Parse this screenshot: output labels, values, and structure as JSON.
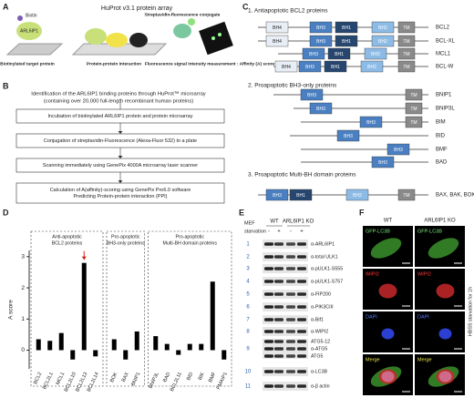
{
  "panel_labels": [
    "A",
    "B",
    "C",
    "D",
    "E",
    "F"
  ],
  "panel_a": {
    "title": "HuProt v3.1 protein array",
    "biotin": "Biotin",
    "protein": "ARL6IP1",
    "captions": [
      "Biotinylated target protein",
      "Protein-protein interaction",
      "Streptavidin-fluorescence conjugate",
      "Fluorescence signal intensity measurement : Affinity (A) score"
    ]
  },
  "panel_b": {
    "header": [
      "Identification of the ARL6IP1 binding proteins through HuProt™ microarray",
      "(containing over 20,000 full-length recombinant human proteins)"
    ],
    "steps": [
      [
        "Incubation of biotinylated ARL6IP1 protein and protein microarray"
      ],
      [
        "Conjugation of streptavidin-Fluorescence (Alexa-Fluor 532) to a plate"
      ],
      [
        "Scanning immediately using GenePix 4000A microarray laser scanner"
      ],
      [
        "Calculation of A(affinity)-scoring using GenePix Pro6.0 software",
        "Predicting Protein-protein interaction (PPI)"
      ]
    ]
  },
  "panel_c": {
    "sections": [
      {
        "title": "1. Antiapoptotic BCL2 proteins",
        "rows": [
          {
            "label": "BCL2",
            "domains": [
              "BH4",
              "BH3",
              "BH1",
              "BH2",
              "TM"
            ]
          },
          {
            "label": "BCL-XL",
            "domains": [
              "BH4",
              "BH3",
              "BH1",
              "BH2",
              "TM"
            ]
          },
          {
            "label": "MCL1",
            "domains": [
              "BH3",
              "BH1",
              "BH2",
              "TM"
            ]
          },
          {
            "label": "BCL-W",
            "domains": [
              "BH4",
              "BH3",
              "BH1",
              "BH2",
              "TM"
            ]
          }
        ]
      },
      {
        "title": "2. Proapoptotic BH3-only proteins",
        "rows": [
          {
            "label": "BNIP1",
            "domains": [
              "BH3",
              "TM"
            ]
          },
          {
            "label": "BNIP3L",
            "domains": [
              "BH3",
              "TM"
            ]
          },
          {
            "label": "BIM",
            "domains": [
              "BH3",
              "TM"
            ]
          },
          {
            "label": "BID",
            "domains": [
              "BH3"
            ]
          },
          {
            "label": "BMF",
            "domains": [
              "BH3"
            ]
          },
          {
            "label": "BAD",
            "domains": [
              "BH3"
            ]
          }
        ]
      },
      {
        "title": "3. Proapoptotic Multi-BH domain proteins",
        "rows": [
          {
            "label": "BAX, BAK, BOK",
            "domains": [
              "BH3",
              "BH1",
              "BH2",
              "TM"
            ]
          }
        ]
      }
    ]
  },
  "chart_data": {
    "type": "bar",
    "ylabel": "A score",
    "ylim": [
      -0.6,
      3.2
    ],
    "yticks": [
      0,
      1,
      2,
      3
    ],
    "color": "#000000",
    "groups": [
      {
        "label": [
          "Anti-apoptotic",
          "BCL2 proteins"
        ],
        "categories": [
          "BCL2",
          "BCL2L1",
          "MCL1",
          "BCL2L10",
          "BCL2L13",
          "BCL2L14"
        ],
        "values": [
          0.35,
          0.3,
          0.55,
          -0.3,
          2.8,
          -0.2
        ]
      },
      {
        "label": [
          "Pro-apoptotic",
          "BH3-only proteins"
        ],
        "categories": [
          "BOK",
          "BAX",
          "BNIP1"
        ],
        "values": [
          0.35,
          -0.3,
          0.6
        ]
      },
      {
        "label": [
          "Pro-apoptotic",
          "Multi-BH domain proteins"
        ],
        "categories": [
          "BNIP3L",
          "BAD",
          "BCL2L11",
          "BID",
          "BIK",
          "BMF",
          "PMAIP1"
        ],
        "values": [
          0.45,
          0.2,
          -0.15,
          0.2,
          0.2,
          2.2,
          -0.3
        ]
      }
    ]
  },
  "panel_e": {
    "cell": "MEF",
    "treatment": "starvation",
    "genotypes": [
      "WT",
      "ARL6IP1 KO"
    ],
    "lanes": [
      "-",
      "+",
      "-",
      "+"
    ],
    "rows": [
      {
        "number": 1,
        "labels": [
          "α-ARL6IP1"
        ]
      },
      {
        "number": 2,
        "labels": [
          "α-total ULK1"
        ]
      },
      {
        "number": 3,
        "labels": [
          "α-pULK1-S555"
        ]
      },
      {
        "number": 4,
        "labels": [
          "α-pULK1-S757"
        ]
      },
      {
        "number": 5,
        "labels": [
          "α-FIP200"
        ]
      },
      {
        "number": 6,
        "labels": [
          "α-PIK3CIII"
        ]
      },
      {
        "number": 7,
        "labels": [
          "α-Bif1"
        ]
      },
      {
        "number": 8,
        "labels": [
          "α-WIPI2"
        ]
      },
      {
        "number": 9,
        "labels": [
          "ATG5-12",
          "α-ATG5",
          "ATG5"
        ]
      },
      {
        "number": 10,
        "labels": [
          "α-LC3B"
        ]
      },
      {
        "number": 11,
        "labels": [
          "α-β actin"
        ]
      }
    ]
  },
  "panel_f": {
    "columns": [
      "WT",
      "ARL6IP1 KO"
    ],
    "channels": [
      "GFP-LC3B",
      "WIPI2",
      "DAPI",
      "Merge"
    ],
    "side_label": "HBSS starvation for 1h"
  }
}
